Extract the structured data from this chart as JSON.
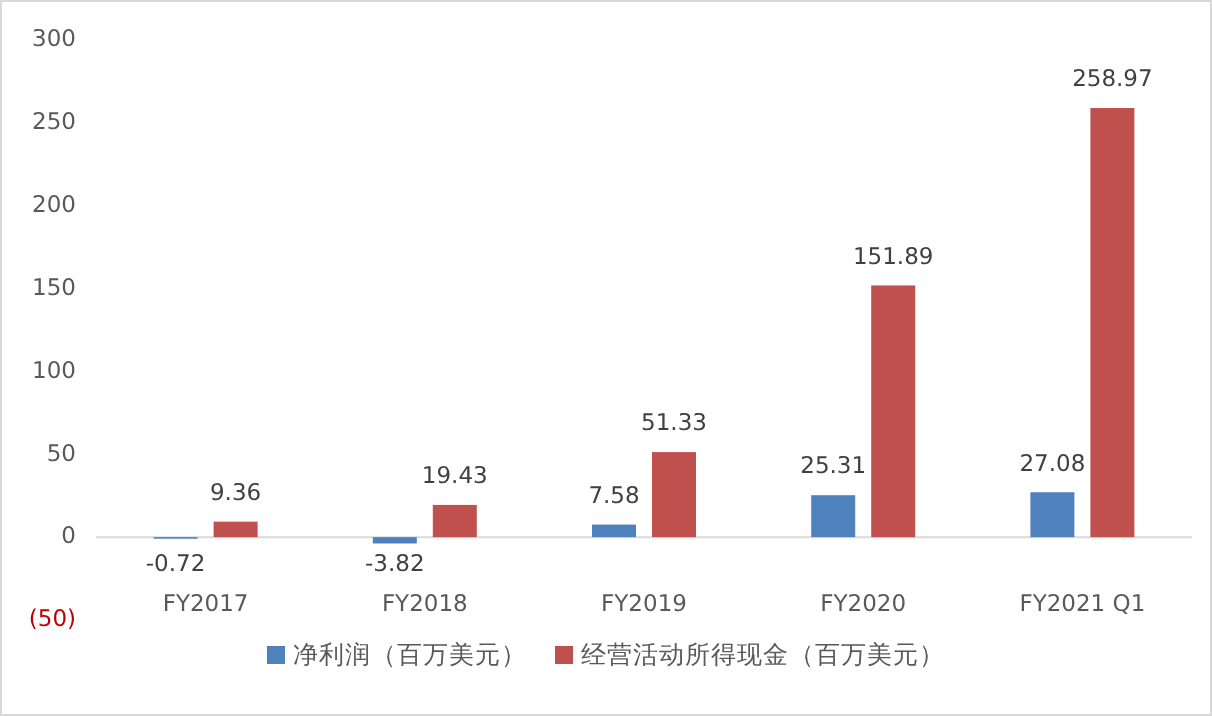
{
  "chart_data": {
    "type": "bar",
    "categories": [
      "FY2017",
      "FY2018",
      "FY2019",
      "FY2020",
      "FY2021 Q1"
    ],
    "series": [
      {
        "name": "净利润（百万美元）",
        "color": "#4f81bd",
        "values": [
          -0.72,
          -3.82,
          7.58,
          25.31,
          27.08
        ]
      },
      {
        "name": "经营活动所得现金（百万美元）",
        "color": "#c0504d",
        "values": [
          9.36,
          19.43,
          51.33,
          151.89,
          258.97
        ]
      }
    ],
    "ylim": [
      -50,
      300
    ],
    "yticks": [
      {
        "value": -50,
        "label": "(50)"
      },
      0,
      50,
      100,
      150,
      200,
      250,
      300
    ],
    "data_labels": true,
    "legend": "bottom"
  }
}
